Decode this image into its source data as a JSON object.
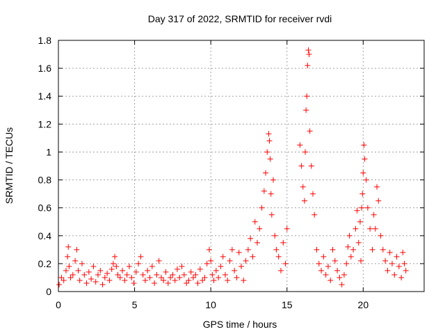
{
  "chart_data": {
    "type": "scatter",
    "title": "Day 317 of 2022, SRMTID for receiver rvdi",
    "xlabel": "GPS time / hours",
    "ylabel": "SRMTID / TECUs",
    "xlim": [
      0,
      24
    ],
    "ylim": [
      0,
      1.8
    ],
    "xticks": [
      0,
      5,
      10,
      15,
      20
    ],
    "xtick_labels": [
      "0",
      "5",
      "10",
      "15",
      "20"
    ],
    "yticks": [
      0,
      0.2,
      0.4,
      0.6,
      0.8,
      1.0,
      1.2,
      1.4,
      1.6,
      1.8
    ],
    "ytick_labels": [
      "0",
      "0.2",
      "0.4",
      "0.6",
      "0.8",
      "1",
      "1.2",
      "1.4",
      "1.6",
      "1.8"
    ],
    "grid": true,
    "marker": "+",
    "color": "#ff0000",
    "series": [
      {
        "name": "SRMTID",
        "x": [
          0.05,
          0.2,
          0.35,
          0.5,
          0.6,
          0.65,
          0.7,
          0.8,
          0.95,
          1.1,
          1.2,
          1.3,
          1.4,
          1.55,
          1.7,
          1.85,
          2.0,
          2.15,
          2.3,
          2.45,
          2.6,
          2.75,
          2.9,
          3.05,
          3.2,
          3.35,
          3.5,
          3.6,
          3.7,
          3.8,
          3.9,
          4.05,
          4.2,
          4.35,
          4.5,
          4.65,
          4.8,
          4.95,
          5.1,
          5.25,
          5.4,
          5.55,
          5.7,
          5.85,
          6.0,
          6.15,
          6.3,
          6.45,
          6.6,
          6.75,
          6.9,
          7.05,
          7.2,
          7.35,
          7.5,
          7.65,
          7.8,
          7.95,
          8.1,
          8.25,
          8.4,
          8.55,
          8.7,
          8.85,
          9.0,
          9.15,
          9.3,
          9.45,
          9.6,
          9.75,
          9.9,
          10.0,
          10.1,
          10.2,
          10.35,
          10.5,
          10.65,
          10.8,
          10.95,
          11.1,
          11.25,
          11.4,
          11.55,
          11.7,
          11.85,
          12.0,
          12.15,
          12.3,
          12.45,
          12.6,
          12.75,
          12.9,
          13.05,
          13.2,
          13.35,
          13.5,
          13.6,
          13.7,
          13.8,
          13.85,
          13.9,
          13.95,
          14.0,
          14.1,
          14.2,
          14.3,
          14.45,
          14.6,
          14.75,
          14.9,
          15.0,
          15.85,
          15.95,
          16.05,
          16.15,
          16.2,
          16.25,
          16.3,
          16.35,
          16.4,
          16.45,
          16.5,
          16.6,
          16.7,
          16.8,
          16.95,
          17.1,
          17.25,
          17.4,
          17.55,
          17.7,
          17.85,
          18.0,
          18.15,
          18.3,
          18.45,
          18.6,
          18.75,
          18.9,
          19.0,
          19.1,
          19.2,
          19.35,
          19.5,
          19.6,
          19.7,
          19.8,
          19.85,
          19.9,
          19.95,
          20.0,
          20.05,
          20.1,
          20.2,
          20.3,
          20.45,
          20.6,
          20.7,
          20.8,
          20.9,
          21.0,
          21.15,
          21.3,
          21.45,
          21.6,
          21.75,
          21.9,
          22.05,
          22.2,
          22.35,
          22.5,
          22.6,
          22.7,
          22.8
        ],
        "y": [
          0.05,
          0.1,
          0.08,
          0.15,
          0.25,
          0.32,
          0.18,
          0.1,
          0.12,
          0.22,
          0.3,
          0.15,
          0.08,
          0.2,
          0.12,
          0.06,
          0.14,
          0.09,
          0.18,
          0.07,
          0.12,
          0.15,
          0.05,
          0.1,
          0.13,
          0.08,
          0.16,
          0.2,
          0.25,
          0.18,
          0.12,
          0.1,
          0.15,
          0.08,
          0.12,
          0.18,
          0.1,
          0.06,
          0.14,
          0.2,
          0.25,
          0.12,
          0.08,
          0.15,
          0.1,
          0.18,
          0.06,
          0.12,
          0.22,
          0.1,
          0.08,
          0.14,
          0.06,
          0.1,
          0.12,
          0.08,
          0.16,
          0.1,
          0.18,
          0.12,
          0.06,
          0.08,
          0.14,
          0.1,
          0.12,
          0.06,
          0.16,
          0.08,
          0.1,
          0.2,
          0.3,
          0.22,
          0.12,
          0.08,
          0.15,
          0.1,
          0.18,
          0.25,
          0.12,
          0.08,
          0.22,
          0.3,
          0.15,
          0.1,
          0.28,
          0.18,
          0.08,
          0.22,
          0.3,
          0.38,
          0.25,
          0.5,
          0.35,
          0.45,
          0.6,
          0.72,
          0.85,
          1.0,
          1.13,
          1.08,
          0.95,
          0.7,
          0.55,
          0.8,
          0.4,
          0.3,
          0.25,
          0.15,
          0.35,
          0.2,
          0.45,
          1.05,
          0.9,
          0.75,
          0.65,
          1.0,
          1.3,
          1.4,
          1.62,
          1.73,
          1.7,
          1.15,
          0.9,
          0.7,
          0.55,
          0.3,
          0.2,
          0.15,
          0.25,
          0.12,
          0.18,
          0.08,
          0.3,
          0.22,
          0.15,
          0.1,
          0.05,
          0.12,
          0.2,
          0.32,
          0.4,
          0.25,
          0.3,
          0.45,
          0.58,
          0.35,
          0.5,
          0.22,
          0.6,
          0.7,
          0.85,
          1.05,
          0.95,
          0.8,
          0.6,
          0.45,
          0.3,
          0.55,
          0.45,
          0.75,
          0.65,
          0.4,
          0.3,
          0.22,
          0.15,
          0.28,
          0.2,
          0.12,
          0.25,
          0.18,
          0.1,
          0.28,
          0.2,
          0.15
        ]
      }
    ]
  }
}
